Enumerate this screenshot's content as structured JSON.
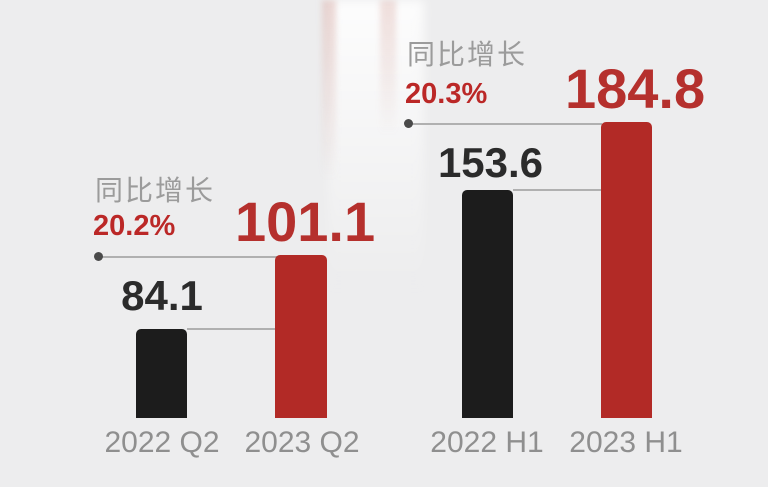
{
  "colors": {
    "background": "#ededee",
    "bar_black": "#1c1c1c",
    "bar_red": "#b22a26",
    "growth_caption_gray": "#9b9b9b",
    "growth_percent_red": "#bb2827",
    "big_number_red": "#b5302d",
    "number_dark": "#2b2b2b",
    "category_gray": "#8f8f8f",
    "leader_line_gray": "#b0b0b0",
    "leader_dot_gray": "#4a4a4a"
  },
  "chart_data": {
    "type": "bar",
    "title": "",
    "xlabel": "",
    "ylabel": "",
    "legend_position": "none",
    "grid": false,
    "axes_visible": false,
    "value_labels_visible": true,
    "groups": [
      {
        "growth_caption": "同比增长",
        "growth_percent": "20.2%",
        "categories": [
          "2022 Q2",
          "2023 Q2"
        ],
        "bars": [
          {
            "category": "2022 Q2",
            "value": 84.1,
            "value_label": "84.1",
            "color": "#1c1c1c"
          },
          {
            "category": "2023 Q2",
            "value": 101.1,
            "value_label": "101.1",
            "color": "#b22a26"
          }
        ]
      },
      {
        "growth_caption": "同比增长",
        "growth_percent": "20.3%",
        "categories": [
          "2022 H1",
          "2023 H1"
        ],
        "bars": [
          {
            "category": "2022 H1",
            "value": 153.6,
            "value_label": "153.6",
            "color": "#1c1c1c"
          },
          {
            "category": "2023 H1",
            "value": 184.8,
            "value_label": "184.8",
            "color": "#b22a26"
          }
        ]
      }
    ]
  }
}
